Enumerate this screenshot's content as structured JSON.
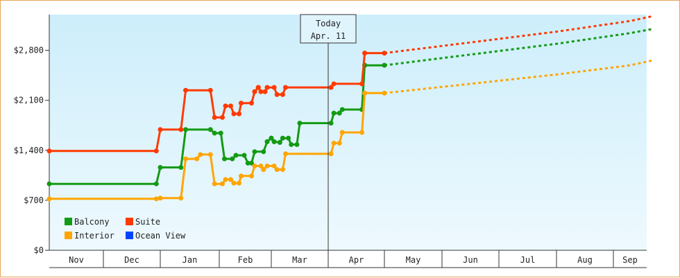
{
  "chart_data": {
    "type": "line",
    "title": "",
    "xlabel": "",
    "ylabel": "",
    "ylim": [
      0,
      3300
    ],
    "yticks": [
      {
        "value": 0,
        "label": "$0"
      },
      {
        "value": 700,
        "label": "$700"
      },
      {
        "value": 1400,
        "label": "$1,400"
      },
      {
        "value": 2100,
        "label": "$2,100"
      },
      {
        "value": 2800,
        "label": "$2,800"
      }
    ],
    "months": [
      "Nov",
      "Dec",
      "Jan",
      "Feb",
      "Mar",
      "Apr",
      "May",
      "Jun",
      "Jul",
      "Aug",
      "Sep"
    ],
    "today_label": "Today",
    "today_date": "Apr. 11",
    "legend_position": "bottom-left",
    "colors": {
      "Balcony": "#139a13",
      "Suite": "#ff3a00",
      "Interior": "#ffa500",
      "Ocean View": "#0044ff"
    },
    "series": [
      {
        "name": "Balcony",
        "points": [
          [
            0,
            930
          ],
          [
            1.93,
            930
          ],
          [
            2.0,
            1160
          ],
          [
            2.35,
            1160
          ],
          [
            2.43,
            1690
          ],
          [
            2.85,
            1690
          ],
          [
            2.92,
            1640
          ],
          [
            3.03,
            1640
          ],
          [
            3.1,
            1280
          ],
          [
            3.25,
            1280
          ],
          [
            3.32,
            1330
          ],
          [
            3.48,
            1330
          ],
          [
            3.55,
            1220
          ],
          [
            3.62,
            1220
          ],
          [
            3.68,
            1380
          ],
          [
            3.85,
            1380
          ],
          [
            3.92,
            1520
          ],
          [
            4.0,
            1570
          ],
          [
            4.05,
            1520
          ],
          [
            4.15,
            1510
          ],
          [
            4.2,
            1570
          ],
          [
            4.3,
            1570
          ],
          [
            4.35,
            1480
          ],
          [
            4.45,
            1480
          ],
          [
            4.5,
            1780
          ],
          [
            5.05,
            1780
          ],
          [
            5.1,
            1920
          ],
          [
            5.2,
            1920
          ],
          [
            5.25,
            1970
          ],
          [
            5.6,
            1970
          ],
          [
            5.65,
            2590
          ],
          [
            6.0,
            2590
          ]
        ],
        "forecast": [
          [
            6.0,
            2590
          ],
          [
            7.5,
            2740
          ],
          [
            9.0,
            2890
          ],
          [
            10.5,
            3040
          ],
          [
            11.2,
            3100
          ]
        ]
      },
      {
        "name": "Suite",
        "points": [
          [
            0,
            1390
          ],
          [
            1.93,
            1390
          ],
          [
            2.0,
            1690
          ],
          [
            2.35,
            1690
          ],
          [
            2.43,
            2240
          ],
          [
            2.85,
            2240
          ],
          [
            2.92,
            1860
          ],
          [
            3.06,
            1860
          ],
          [
            3.12,
            2020
          ],
          [
            3.22,
            2020
          ],
          [
            3.28,
            1910
          ],
          [
            3.38,
            1910
          ],
          [
            3.42,
            2060
          ],
          [
            3.62,
            2060
          ],
          [
            3.68,
            2220
          ],
          [
            3.75,
            2280
          ],
          [
            3.8,
            2220
          ],
          [
            3.88,
            2220
          ],
          [
            3.92,
            2280
          ],
          [
            4.05,
            2280
          ],
          [
            4.1,
            2180
          ],
          [
            4.2,
            2180
          ],
          [
            4.25,
            2280
          ],
          [
            5.05,
            2280
          ],
          [
            5.1,
            2330
          ],
          [
            5.6,
            2330
          ],
          [
            5.65,
            2760
          ],
          [
            6.0,
            2760
          ]
        ],
        "forecast": [
          [
            6.0,
            2760
          ],
          [
            7.5,
            2910
          ],
          [
            9.0,
            3060
          ],
          [
            10.5,
            3210
          ],
          [
            11.2,
            3280
          ]
        ]
      },
      {
        "name": "Interior",
        "points": [
          [
            0,
            720
          ],
          [
            1.93,
            720
          ],
          [
            2.0,
            730
          ],
          [
            2.35,
            730
          ],
          [
            2.43,
            1280
          ],
          [
            2.62,
            1280
          ],
          [
            2.68,
            1340
          ],
          [
            2.85,
            1340
          ],
          [
            2.92,
            930
          ],
          [
            3.06,
            930
          ],
          [
            3.12,
            990
          ],
          [
            3.22,
            990
          ],
          [
            3.28,
            940
          ],
          [
            3.38,
            940
          ],
          [
            3.42,
            1040
          ],
          [
            3.62,
            1040
          ],
          [
            3.68,
            1180
          ],
          [
            3.8,
            1180
          ],
          [
            3.85,
            1130
          ],
          [
            3.92,
            1180
          ],
          [
            4.05,
            1180
          ],
          [
            4.1,
            1130
          ],
          [
            4.2,
            1130
          ],
          [
            4.25,
            1350
          ],
          [
            5.05,
            1350
          ],
          [
            5.1,
            1500
          ],
          [
            5.2,
            1500
          ],
          [
            5.25,
            1650
          ],
          [
            5.6,
            1650
          ],
          [
            5.65,
            2200
          ],
          [
            6.0,
            2200
          ]
        ],
        "forecast": [
          [
            6.0,
            2200
          ],
          [
            7.5,
            2330
          ],
          [
            9.0,
            2460
          ],
          [
            10.5,
            2590
          ],
          [
            11.2,
            2660
          ]
        ]
      },
      {
        "name": "Ocean View",
        "points": [],
        "forecast": []
      }
    ]
  }
}
